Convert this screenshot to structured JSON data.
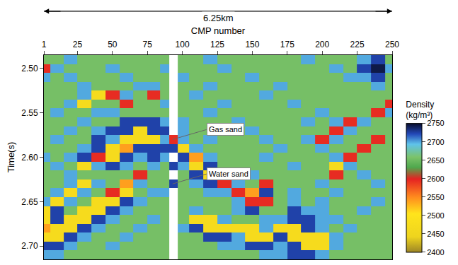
{
  "chart_data": {
    "type": "heatmap",
    "x_label": "CMP number",
    "y_label": "Time(s)",
    "distance_label": "6.25km",
    "x": [
      1,
      10,
      20,
      30,
      40,
      50,
      60,
      70,
      80,
      88,
      93,
      100,
      110,
      120,
      130,
      140,
      150,
      160,
      170,
      180,
      190,
      200,
      210,
      220,
      230,
      240,
      250
    ],
    "y": [
      2.49,
      2.5,
      2.51,
      2.52,
      2.53,
      2.54,
      2.55,
      2.56,
      2.57,
      2.58,
      2.59,
      2.6,
      2.61,
      2.62,
      2.63,
      2.64,
      2.65,
      2.66,
      2.67,
      2.68,
      2.69,
      2.7,
      2.71
    ],
    "z": [
      [
        2655,
        2655,
        2700,
        2655,
        2655,
        2655,
        2655,
        2655,
        2655,
        2655,
        null,
        2655,
        2655,
        2700,
        2655,
        2655,
        2655,
        2655,
        2655,
        2655,
        2700,
        2655,
        2655,
        2655,
        2700,
        2725,
        2655
      ],
      [
        2595,
        2700,
        2655,
        2655,
        2655,
        2700,
        2655,
        2655,
        2655,
        2700,
        null,
        2655,
        2655,
        2655,
        2700,
        2655,
        2655,
        2655,
        2655,
        2655,
        2655,
        2655,
        2700,
        2655,
        2725,
        2745,
        2700
      ],
      [
        2700,
        2655,
        2700,
        2655,
        2655,
        2655,
        2700,
        2655,
        2655,
        2655,
        null,
        2700,
        2655,
        2655,
        2655,
        2655,
        2700,
        2655,
        2655,
        2655,
        2655,
        2655,
        2655,
        2700,
        2700,
        2725,
        2655
      ],
      [
        2655,
        2655,
        2655,
        2700,
        2655,
        2655,
        2655,
        2700,
        2700,
        2655,
        null,
        2655,
        2655,
        2700,
        2655,
        2655,
        2655,
        2655,
        2700,
        2655,
        2655,
        2655,
        2655,
        2655,
        2655,
        2700,
        2655
      ],
      [
        2655,
        2655,
        2655,
        2700,
        2470,
        2595,
        2700,
        2655,
        2595,
        2655,
        null,
        2655,
        2700,
        2655,
        2655,
        2655,
        2655,
        2700,
        2655,
        2655,
        2655,
        2655,
        2655,
        2655,
        2655,
        2655,
        2655
      ],
      [
        2655,
        2655,
        2700,
        2470,
        2655,
        2655,
        2595,
        2655,
        2655,
        2700,
        null,
        2655,
        2655,
        2655,
        2700,
        2655,
        2655,
        2655,
        2655,
        2700,
        2655,
        2655,
        2655,
        2655,
        2655,
        2655,
        2595
      ],
      [
        2655,
        2700,
        2655,
        2655,
        2700,
        2700,
        2655,
        2655,
        2655,
        2655,
        null,
        2655,
        2655,
        2700,
        2655,
        2655,
        2655,
        2655,
        2655,
        2655,
        2655,
        2700,
        2655,
        2655,
        2655,
        2595,
        2700
      ],
      [
        2655,
        2655,
        2655,
        2700,
        2655,
        2655,
        2725,
        2725,
        2725,
        2700,
        null,
        2700,
        2655,
        2655,
        2655,
        2700,
        2655,
        2655,
        2655,
        2655,
        2700,
        2655,
        2700,
        2595,
        2700,
        2655,
        2655
      ],
      [
        2655,
        2655,
        2700,
        2655,
        2700,
        2725,
        2725,
        2470,
        2725,
        2725,
        null,
        2700,
        2655,
        2655,
        2655,
        2655,
        2700,
        2655,
        2655,
        2655,
        2655,
        2655,
        2595,
        2700,
        2655,
        2655,
        2655
      ],
      [
        2655,
        2700,
        2655,
        2655,
        2725,
        2700,
        2470,
        2470,
        2470,
        2700,
        2595,
        2700,
        2655,
        2700,
        2655,
        2655,
        2655,
        2700,
        2655,
        2655,
        2700,
        2595,
        2700,
        2655,
        2655,
        2595,
        2655
      ],
      [
        2655,
        2655,
        2655,
        2700,
        2725,
        2470,
        2540,
        2725,
        2725,
        2725,
        2725,
        2470,
        2700,
        2655,
        2655,
        2655,
        2655,
        2655,
        2700,
        2655,
        2655,
        2700,
        2655,
        2655,
        2595,
        2655,
        2655
      ],
      [
        2700,
        2655,
        2700,
        2725,
        2595,
        2470,
        2725,
        2700,
        2725,
        2700,
        null,
        2725,
        2540,
        2700,
        2655,
        2655,
        2655,
        2700,
        2655,
        2655,
        2655,
        2655,
        2700,
        2595,
        2655,
        2655,
        2655
      ],
      [
        2655,
        2700,
        2655,
        2470,
        2700,
        2725,
        2700,
        2655,
        2700,
        2655,
        2725,
        2700,
        2470,
        2725,
        2655,
        2655,
        2655,
        2655,
        2655,
        2700,
        2655,
        2655,
        2470,
        2700,
        2655,
        2655,
        2655
      ],
      [
        2655,
        2655,
        2700,
        2655,
        2655,
        2655,
        2655,
        2595,
        2655,
        2655,
        null,
        2655,
        2725,
        2470,
        2700,
        2655,
        2700,
        2655,
        2655,
        2655,
        2655,
        2655,
        2595,
        2655,
        2700,
        2655,
        2655
      ],
      [
        2655,
        2655,
        2700,
        2470,
        2700,
        2655,
        2540,
        2700,
        2655,
        2655,
        2725,
        2655,
        2700,
        2725,
        2595,
        2700,
        2655,
        2595,
        2655,
        2655,
        2655,
        2700,
        2655,
        2655,
        2655,
        2700,
        2655
      ],
      [
        2655,
        2700,
        2470,
        2700,
        2655,
        2595,
        2470,
        2655,
        2700,
        2700,
        null,
        2655,
        2655,
        2700,
        2700,
        2595,
        2540,
        2725,
        2655,
        2700,
        2655,
        2655,
        2700,
        2655,
        2655,
        2655,
        2655
      ],
      [
        2700,
        2470,
        2700,
        2655,
        2470,
        2470,
        2725,
        2700,
        2655,
        2655,
        null,
        2655,
        2655,
        2655,
        2655,
        2700,
        2595,
        2595,
        2655,
        2700,
        2655,
        2700,
        2655,
        2655,
        2655,
        2700,
        2655
      ],
      [
        2470,
        2725,
        2655,
        2470,
        2470,
        2725,
        2700,
        2655,
        2655,
        2655,
        null,
        2655,
        2700,
        2655,
        2655,
        2700,
        2725,
        2655,
        2655,
        2725,
        2700,
        2700,
        2655,
        2655,
        2700,
        2655,
        2655
      ],
      [
        2470,
        2725,
        2470,
        2470,
        2725,
        2700,
        2655,
        2655,
        2700,
        2655,
        null,
        2655,
        2470,
        2470,
        2700,
        2655,
        2655,
        2700,
        2700,
        2725,
        2725,
        2700,
        2700,
        2655,
        2655,
        2655,
        2655
      ],
      [
        2540,
        2470,
        2470,
        2725,
        2700,
        2655,
        2655,
        2700,
        2655,
        2655,
        null,
        2700,
        2725,
        2470,
        2470,
        2470,
        2470,
        2700,
        2470,
        2470,
        2725,
        2700,
        2655,
        2700,
        2655,
        2655,
        2655
      ],
      [
        2470,
        2470,
        2725,
        2700,
        2655,
        2655,
        2700,
        2655,
        2655,
        2655,
        null,
        2655,
        2655,
        2725,
        2725,
        2700,
        2470,
        2470,
        2725,
        2470,
        2470,
        2470,
        2700,
        2655,
        2655,
        2655,
        2655
      ],
      [
        2725,
        2725,
        2700,
        2655,
        2655,
        2700,
        2655,
        2655,
        2655,
        2655,
        null,
        2655,
        2655,
        2655,
        2700,
        2700,
        2725,
        2725,
        2700,
        2725,
        2470,
        2470,
        2700,
        2655,
        2655,
        2655,
        2655
      ],
      [
        2700,
        2700,
        2655,
        2655,
        2655,
        2655,
        2655,
        2655,
        2655,
        2655,
        null,
        2655,
        2655,
        2655,
        2655,
        2655,
        2655,
        2700,
        2700,
        2725,
        2725,
        2700,
        2655,
        2655,
        2655,
        2655,
        2655
      ]
    ],
    "xlim": [
      1,
      250
    ],
    "xticks": [
      1,
      25,
      50,
      75,
      100,
      125,
      150,
      175,
      200,
      225,
      250
    ],
    "ylim": [
      2.485,
      2.715
    ],
    "yticks": [
      {
        "value": 2.5,
        "label": "2.50"
      },
      2.55,
      {
        "value": 2.6,
        "label": "2.60"
      },
      2.65,
      {
        "value": 2.7,
        "label": "2.70"
      }
    ],
    "colorbar": {
      "title": "Density (kg/m³)",
      "range": [
        2400,
        2750
      ],
      "ticks": [
        2400,
        2450,
        2500,
        2550,
        2600,
        2650,
        2700,
        2750
      ]
    },
    "annotations": [
      {
        "text": "Gas sand",
        "x": 93,
        "y": 2.58
      },
      {
        "text": "Water sand",
        "x": 93,
        "y": 2.63
      }
    ]
  }
}
